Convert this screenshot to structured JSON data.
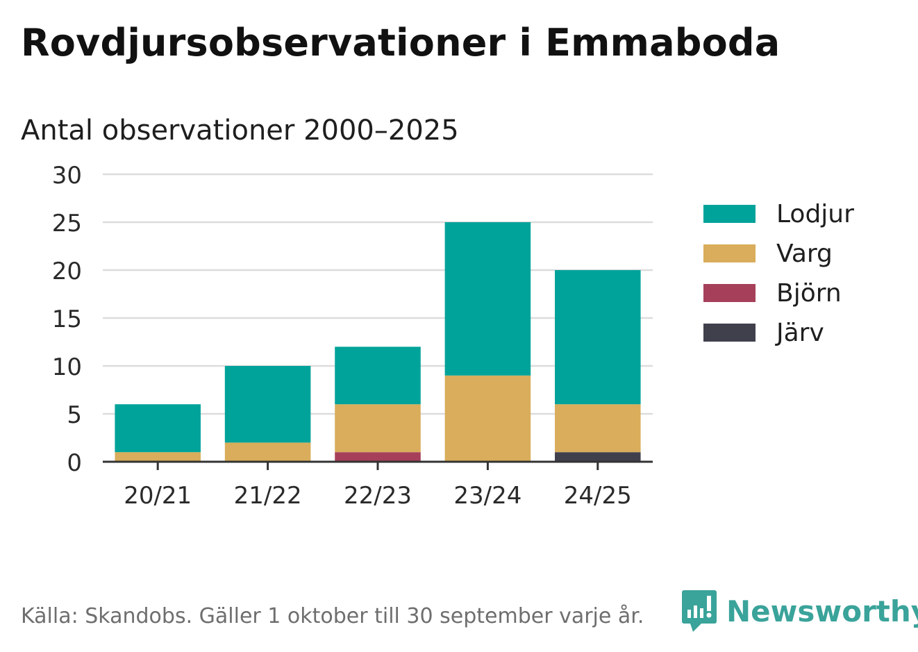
{
  "title": "Rovdjursobservationer i Emmaboda",
  "subtitle": "Antal observationer 2000–2025",
  "chart_data": {
    "type": "bar",
    "stacked": true,
    "title": "Rovdjursobservationer i Emmaboda",
    "subtitle": "Antal observationer 2000–2025",
    "categories": [
      "20/21",
      "21/22",
      "22/23",
      "23/24",
      "24/25"
    ],
    "series": [
      {
        "name": "Järv",
        "color": "#40404d",
        "values": [
          0,
          0,
          0,
          0,
          1
        ]
      },
      {
        "name": "Björn",
        "color": "#a6405a",
        "values": [
          0,
          0,
          1,
          0,
          0
        ]
      },
      {
        "name": "Varg",
        "color": "#d9ad5b",
        "values": [
          1,
          2,
          5,
          9,
          5
        ]
      },
      {
        "name": "Lodjur",
        "color": "#00a39a",
        "values": [
          5,
          8,
          6,
          16,
          14
        ]
      }
    ],
    "legend_order": [
      "Lodjur",
      "Varg",
      "Björn",
      "Järv"
    ],
    "legend_position": "right",
    "xlabel": "",
    "ylabel": "",
    "ylim": [
      0,
      30
    ],
    "yticks": [
      0,
      5,
      10,
      15,
      20,
      25,
      30
    ],
    "grid": true
  },
  "footer": {
    "source": "Källa: Skandobs. Gäller 1 oktober till 30 september varje år.",
    "brand": "Newsworthy",
    "brand_color": "#3aa39a"
  }
}
